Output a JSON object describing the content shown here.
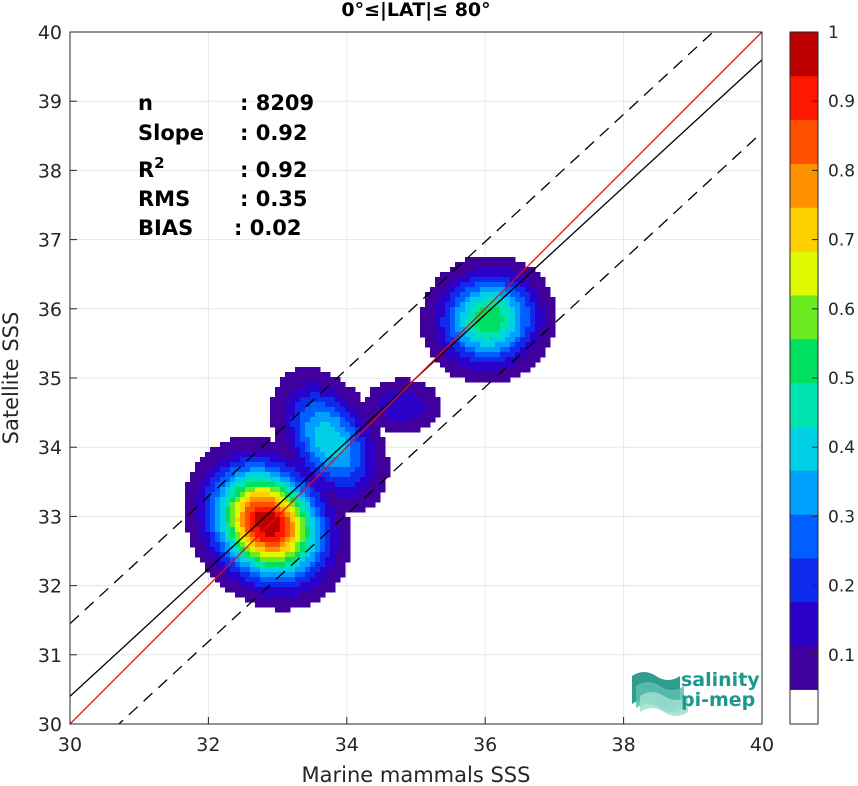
{
  "chart_data": {
    "type": "heatmap",
    "title": "0°≤|LAT|≤ 80°",
    "xlabel": "Marine mammals SSS",
    "ylabel": "Satellite SSS",
    "xlim": [
      30,
      40
    ],
    "ylim": [
      30,
      40
    ],
    "xticks": [
      "30",
      "32",
      "34",
      "36",
      "38",
      "40"
    ],
    "yticks": [
      "30",
      "31",
      "32",
      "33",
      "34",
      "35",
      "36",
      "37",
      "38",
      "39",
      "40"
    ],
    "grid": true,
    "colorbar": {
      "range": [
        0,
        1
      ],
      "ticks": [
        "0.1",
        "0.2",
        "0.3",
        "0.4",
        "0.5",
        "0.6",
        "0.7",
        "0.8",
        "0.9",
        "1"
      ],
      "colormap": "jet"
    },
    "stats": [
      {
        "label": "n",
        "value": ": 8209"
      },
      {
        "label": "Slope",
        "value": ": 0.92"
      },
      {
        "label": "R",
        "sup": "2",
        "value": ": 0.92"
      },
      {
        "label": "RMS",
        "value": ": 0.35"
      },
      {
        "label": "BIAS",
        "value": ": 0.02"
      }
    ],
    "lines": {
      "identity": {
        "slope": 1.0,
        "intercept": 0.0,
        "color": "#ff0000"
      },
      "fit": {
        "slope": 0.92,
        "intercept": 2.8,
        "color": "#000000"
      },
      "bounds_offset": 1.05
    },
    "clusters": [
      {
        "cx": 32.85,
        "cy": 32.9,
        "sx": 0.45,
        "sy": 0.55,
        "rot": 40,
        "peak": 1.0
      },
      {
        "cx": 33.75,
        "cy": 34.1,
        "sx": 0.35,
        "sy": 0.55,
        "rot": 30,
        "peak": 0.42
      },
      {
        "cx": 34.8,
        "cy": 34.6,
        "sx": 0.35,
        "sy": 0.25,
        "rot": 0,
        "peak": 0.17
      },
      {
        "cx": 36.05,
        "cy": 35.85,
        "sx": 0.45,
        "sy": 0.42,
        "rot": 20,
        "peak": 0.55
      }
    ]
  },
  "logo": {
    "line1": "salinity",
    "line2": "pi-mep"
  }
}
